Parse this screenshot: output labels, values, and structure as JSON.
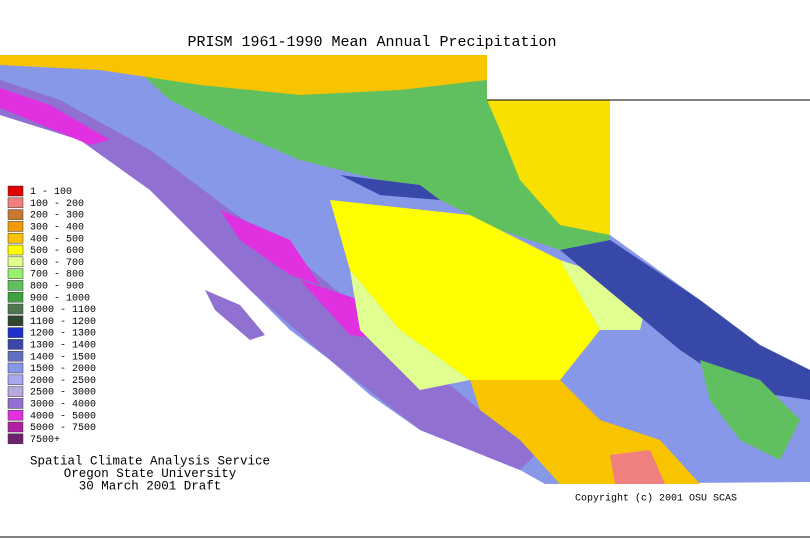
{
  "title": "PRISM 1961-1990 Mean Annual Precipitation",
  "legend": [
    {
      "label": "1 - 100",
      "color": "#e00000"
    },
    {
      "label": "100 - 200",
      "color": "#f08080"
    },
    {
      "label": "200 - 300",
      "color": "#c87830"
    },
    {
      "label": "300 - 400",
      "color": "#f09a00"
    },
    {
      "label": "400 - 500",
      "color": "#f8c400"
    },
    {
      "label": "500 - 600",
      "color": "#ffff00"
    },
    {
      "label": "600 - 700",
      "color": "#e0ff90"
    },
    {
      "label": "700 - 800",
      "color": "#98f070"
    },
    {
      "label": "800 - 900",
      "color": "#60c060"
    },
    {
      "label": "900 - 1000",
      "color": "#40a040"
    },
    {
      "label": "1000 - 1100",
      "color": "#507850"
    },
    {
      "label": "1100 - 1200",
      "color": "#304530"
    },
    {
      "label": "1200 - 1300",
      "color": "#2030d0"
    },
    {
      "label": "1300 - 1400",
      "color": "#3848a8"
    },
    {
      "label": "1400 - 1500",
      "color": "#6070c0"
    },
    {
      "label": "1500 - 2000",
      "color": "#8898e8"
    },
    {
      "label": "2000 - 2500",
      "color": "#a8a8f0"
    },
    {
      "label": "2500 - 3000",
      "color": "#b8a8e0"
    },
    {
      "label": "3000 - 4000",
      "color": "#9070d0"
    },
    {
      "label": "4000 - 5000",
      "color": "#e030e0"
    },
    {
      "label": "5000 - 7500",
      "color": "#b020a0"
    },
    {
      "label": "7500+",
      "color": "#702070"
    }
  ],
  "credits": [
    "Spatial Climate Analysis Service",
    "Oregon State University",
    "30 March 2001 Draft"
  ],
  "copyright": "Copyright (c) 2001 OSU SCAS"
}
